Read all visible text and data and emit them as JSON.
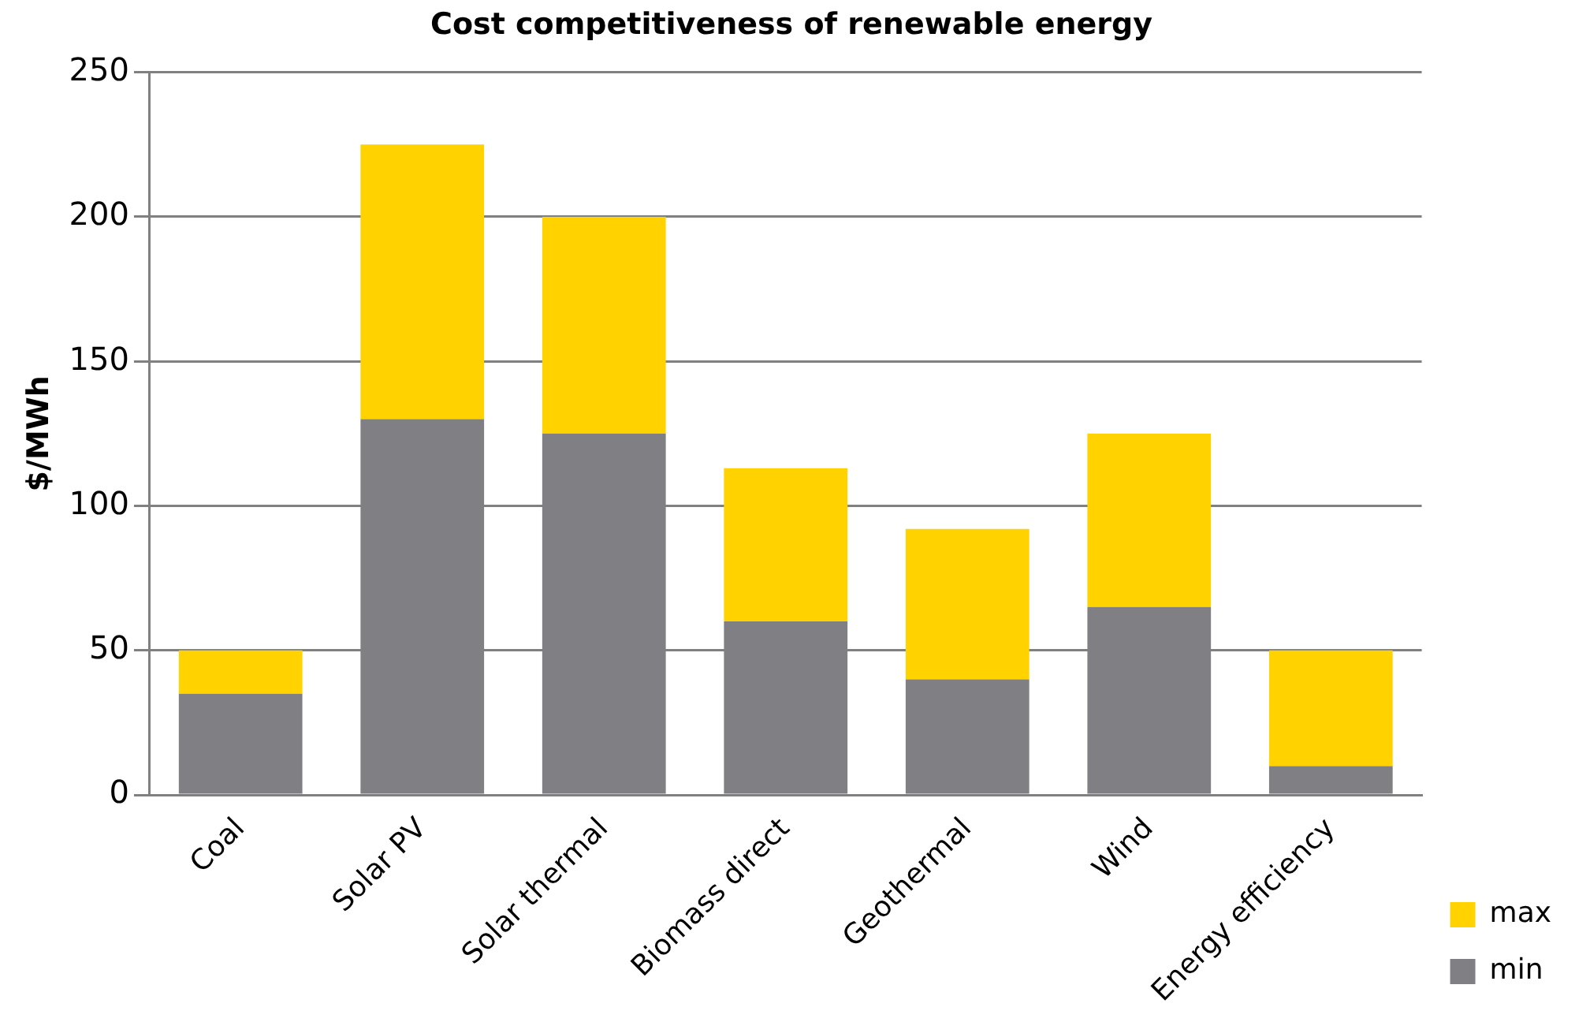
{
  "chart_data": {
    "type": "bar",
    "title": "Cost competitiveness of renewable energy",
    "ylabel": "$/MWh",
    "categories": [
      "Coal",
      "Solar PV",
      "Solar thermal",
      "Biomass direct",
      "Geothermal",
      "Wind",
      "Energy efficiency"
    ],
    "series": [
      {
        "name": "min",
        "color": "#807f83",
        "values": [
          35,
          130,
          125,
          60,
          40,
          65,
          10
        ]
      },
      {
        "name": "max",
        "color": "#ffd200",
        "values": [
          15,
          95,
          75,
          53,
          52,
          60,
          40
        ]
      }
    ],
    "stacked": true,
    "ylim": [
      0,
      250
    ],
    "yticks": [
      0,
      50,
      100,
      150,
      200,
      250
    ],
    "grid": "y",
    "legend": "bottom right"
  }
}
